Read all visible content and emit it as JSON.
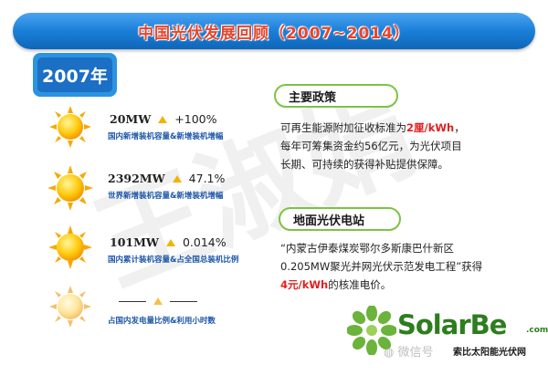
{
  "title": "中国光伏发展回顾（2007~2014）",
  "year": "2007年",
  "watermark": "王淑娟",
  "stats": [
    {
      "value": "20MW",
      "change": "+100%",
      "caption": "国内新增装机容量&新增装机增幅"
    },
    {
      "value": "2392MW",
      "change": "47.1%",
      "caption": "世界新增装机容量&新增装机增幅"
    },
    {
      "value": "101MW",
      "change": "0.014%",
      "caption": "国内累计装机容量&占全国总装机比例"
    },
    {
      "value": "",
      "change": "",
      "caption": "占国内发电量比例&利用小时数"
    }
  ],
  "policy": {
    "heading": "主要政策",
    "line1_pre": "可再生能源附加征收标准为",
    "line1_highlight": "2厘/kWh",
    "line1_post": "，",
    "line2": "每年可筹集资金约56亿元，为光伏项目",
    "line3": "长期、可持续的获得补贴提供保障。"
  },
  "station": {
    "heading": "地面光伏电站",
    "line1": "“内蒙古伊泰煤炭鄂尔多斯康巴什新区",
    "line2": "0.205MW聚光并网光伏示范发电工程”获得",
    "line3_highlight": "4元/kWh",
    "line3_post": "的核准电价。"
  },
  "logo": {
    "brand": "SolarBe",
    "domain": ".com",
    "tagline": "索比太阳能光伏网",
    "wechat": "微信号"
  },
  "colors": {
    "title_bar": "#1a7fd8",
    "title_text": "#e8452c",
    "year_badge": "#1b6fc4",
    "pill_border": "#7cc343",
    "highlight": "#e02020",
    "caption": "#1b55a8",
    "logo_green": "#2e7d1e"
  },
  "icons": [
    "sun-icon",
    "up-triangle-icon",
    "solarbe-flower-logo-icon",
    "wechat-icon"
  ]
}
